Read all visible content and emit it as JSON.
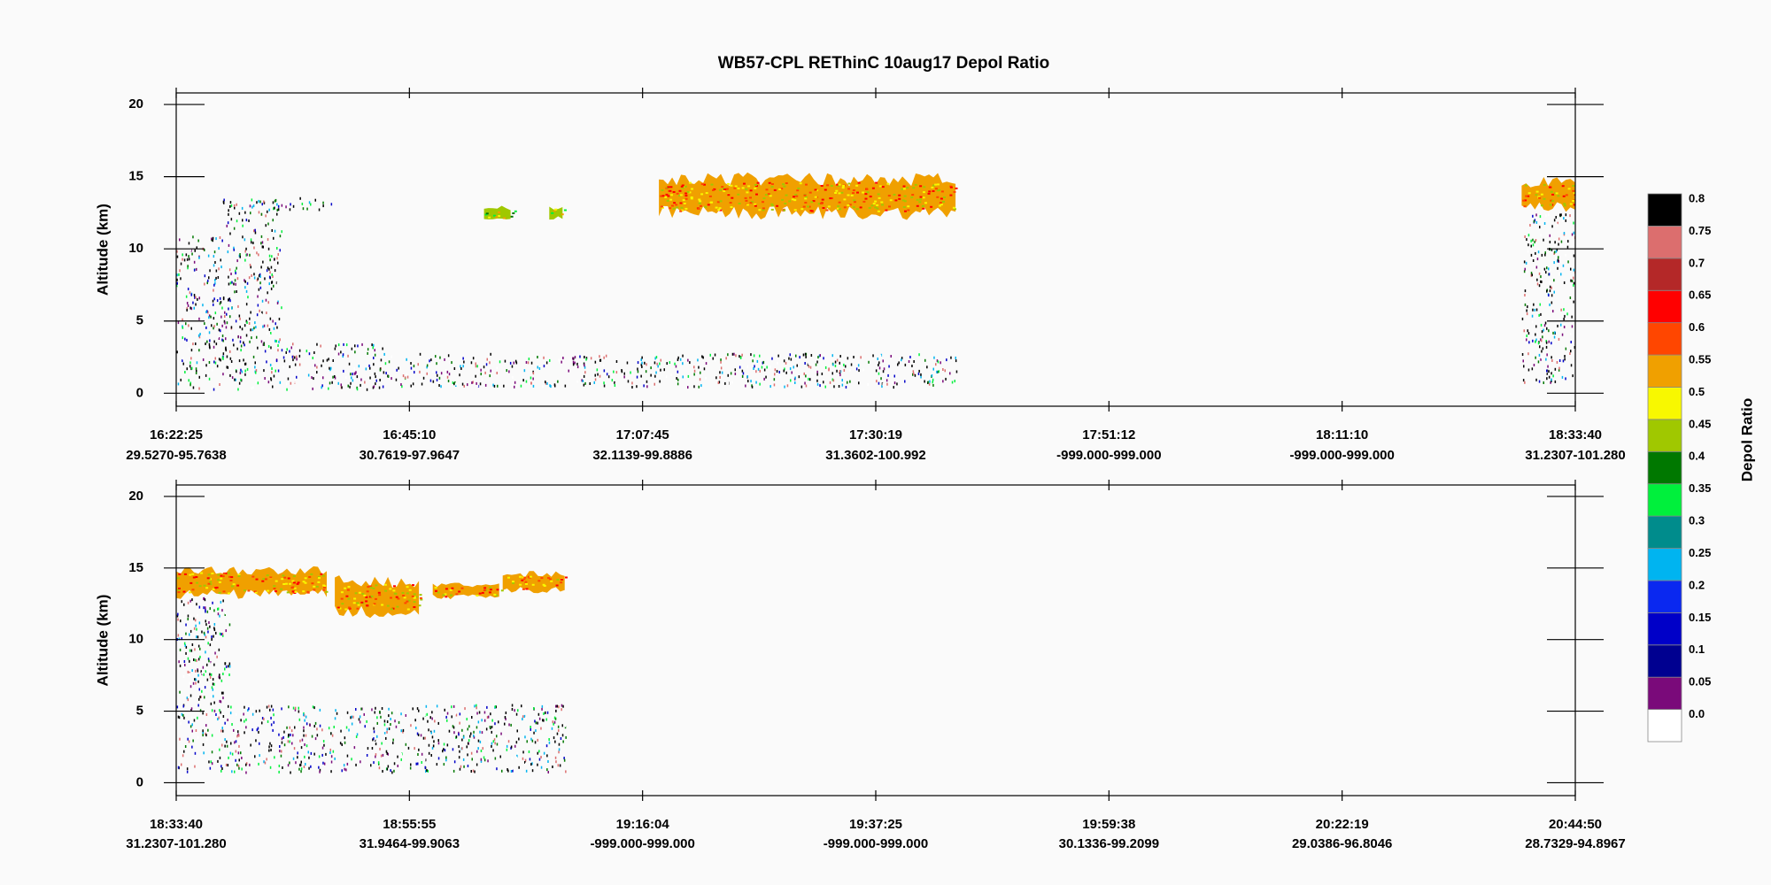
{
  "chart_data": {
    "type": "curtain",
    "title": "WB57-CPL REThinC 10aug17 Depol Ratio",
    "panels": [
      {
        "ylabel": "Altitude (km)",
        "ylim": [
          -0.9,
          20.8
        ],
        "yticks": [
          0,
          5,
          10,
          15,
          20
        ],
        "xlim": [
          0,
          6
        ],
        "xticks": [
          {
            "value": 0,
            "label": "16:22:25",
            "sublabel": "29.5270-95.7638"
          },
          {
            "value": 1,
            "label": "16:45:10",
            "sublabel": "30.7619-97.9647"
          },
          {
            "value": 2,
            "label": "17:07:45",
            "sublabel": "32.1139-99.8886"
          },
          {
            "value": 3,
            "label": "17:30:19",
            "sublabel": "31.3602-100.992"
          },
          {
            "value": 4,
            "label": "17:51:12",
            "sublabel": "-999.000-999.000"
          },
          {
            "value": 5,
            "label": "18:11:10",
            "sublabel": "-999.000-999.000"
          },
          {
            "value": 6,
            "label": "18:33:40",
            "sublabel": "31.2307-101.280"
          }
        ],
        "features": [
          {
            "x": [
              0,
              0.2
            ],
            "alt": [
              0.3,
              11
            ],
            "depol": 0.8,
            "style": "speckle"
          },
          {
            "x": [
              0.2,
              0.45
            ],
            "alt": [
              0.3,
              13.5
            ],
            "depol": 0.8,
            "style": "speckle"
          },
          {
            "x": [
              0.45,
              0.9
            ],
            "alt": [
              0.3,
              3.5
            ],
            "depol": 0.8,
            "style": "speckle"
          },
          {
            "x": [
              0.9,
              3.35
            ],
            "alt": [
              0.5,
              2.8
            ],
            "depol": 0.8,
            "style": "speckle"
          },
          {
            "x": [
              0.35,
              0.67
            ],
            "alt": [
              12.8,
              13.6
            ],
            "depol": 0.8,
            "style": "speckle"
          },
          {
            "x": [
              2.07,
              3.35
            ],
            "alt": [
              12,
              15.3
            ],
            "depol": 0.55,
            "style": "solid"
          },
          {
            "x": [
              1.32,
              1.45
            ],
            "alt": [
              11.8,
              13
            ],
            "depol": 0.45,
            "style": "solid"
          },
          {
            "x": [
              1.6,
              1.67
            ],
            "alt": [
              12,
              13
            ],
            "depol": 0.45,
            "style": "solid"
          },
          {
            "x": [
              5.77,
              6
            ],
            "alt": [
              12.5,
              15
            ],
            "depol": 0.52,
            "style": "solid"
          },
          {
            "x": [
              5.77,
              6
            ],
            "alt": [
              0.8,
              12.5
            ],
            "depol": 0.8,
            "style": "speckle"
          }
        ]
      },
      {
        "ylabel": "Altitude (km)",
        "ylim": [
          -0.9,
          20.8
        ],
        "yticks": [
          0,
          5,
          10,
          15,
          20
        ],
        "xlim": [
          0,
          6
        ],
        "xticks": [
          {
            "value": 0,
            "label": "18:33:40",
            "sublabel": "31.2307-101.280"
          },
          {
            "value": 1,
            "label": "18:55:55",
            "sublabel": "31.9464-99.9063"
          },
          {
            "value": 2,
            "label": "19:16:04",
            "sublabel": "-999.000-999.000"
          },
          {
            "value": 3,
            "label": "19:37:25",
            "sublabel": "-999.000-999.000"
          },
          {
            "value": 4,
            "label": "19:59:38",
            "sublabel": "30.1336-99.2099"
          },
          {
            "value": 5,
            "label": "20:22:19",
            "sublabel": "29.0386-96.8046"
          },
          {
            "value": 6,
            "label": "20:44:50",
            "sublabel": "28.7329-94.8967"
          }
        ],
        "features": [
          {
            "x": [
              0,
              0.65
            ],
            "alt": [
              12.8,
              15.2
            ],
            "depol": 0.55,
            "style": "solid"
          },
          {
            "x": [
              0.68,
              1.05
            ],
            "alt": [
              11.5,
              14.5
            ],
            "depol": 0.55,
            "style": "solid"
          },
          {
            "x": [
              1.1,
              1.4
            ],
            "alt": [
              12.8,
              14
            ],
            "depol": 0.55,
            "style": "solid"
          },
          {
            "x": [
              1.4,
              1.67
            ],
            "alt": [
              13.2,
              14.8
            ],
            "depol": 0.55,
            "style": "solid"
          },
          {
            "x": [
              0,
              0.23
            ],
            "alt": [
              0.8,
              13
            ],
            "depol": 0.8,
            "style": "speckle"
          },
          {
            "x": [
              0.23,
              1.67
            ],
            "alt": [
              0.8,
              5.5
            ],
            "depol": 0.8,
            "style": "speckle"
          }
        ]
      }
    ],
    "colorbar": {
      "label": "Depol Ratio",
      "ticks": [
        {
          "value": 0,
          "label": "0.0"
        },
        0.05,
        0.1,
        0.15,
        0.2,
        0.25,
        0.3,
        0.35,
        0.4,
        0.45,
        0.5,
        0.55,
        0.6,
        0.65,
        0.7,
        0.75,
        0.8
      ],
      "colors": [
        "#ffffff",
        "#7a0a7a",
        "#000090",
        "#0000c8",
        "#0a28f0",
        "#00b4f0",
        "#008c8c",
        "#00f03c",
        "#007800",
        "#a0c800",
        "#f8f800",
        "#f0a000",
        "#ff4600",
        "#ff0000",
        "#b42828",
        "#dc6e6e",
        "#000000"
      ]
    }
  }
}
